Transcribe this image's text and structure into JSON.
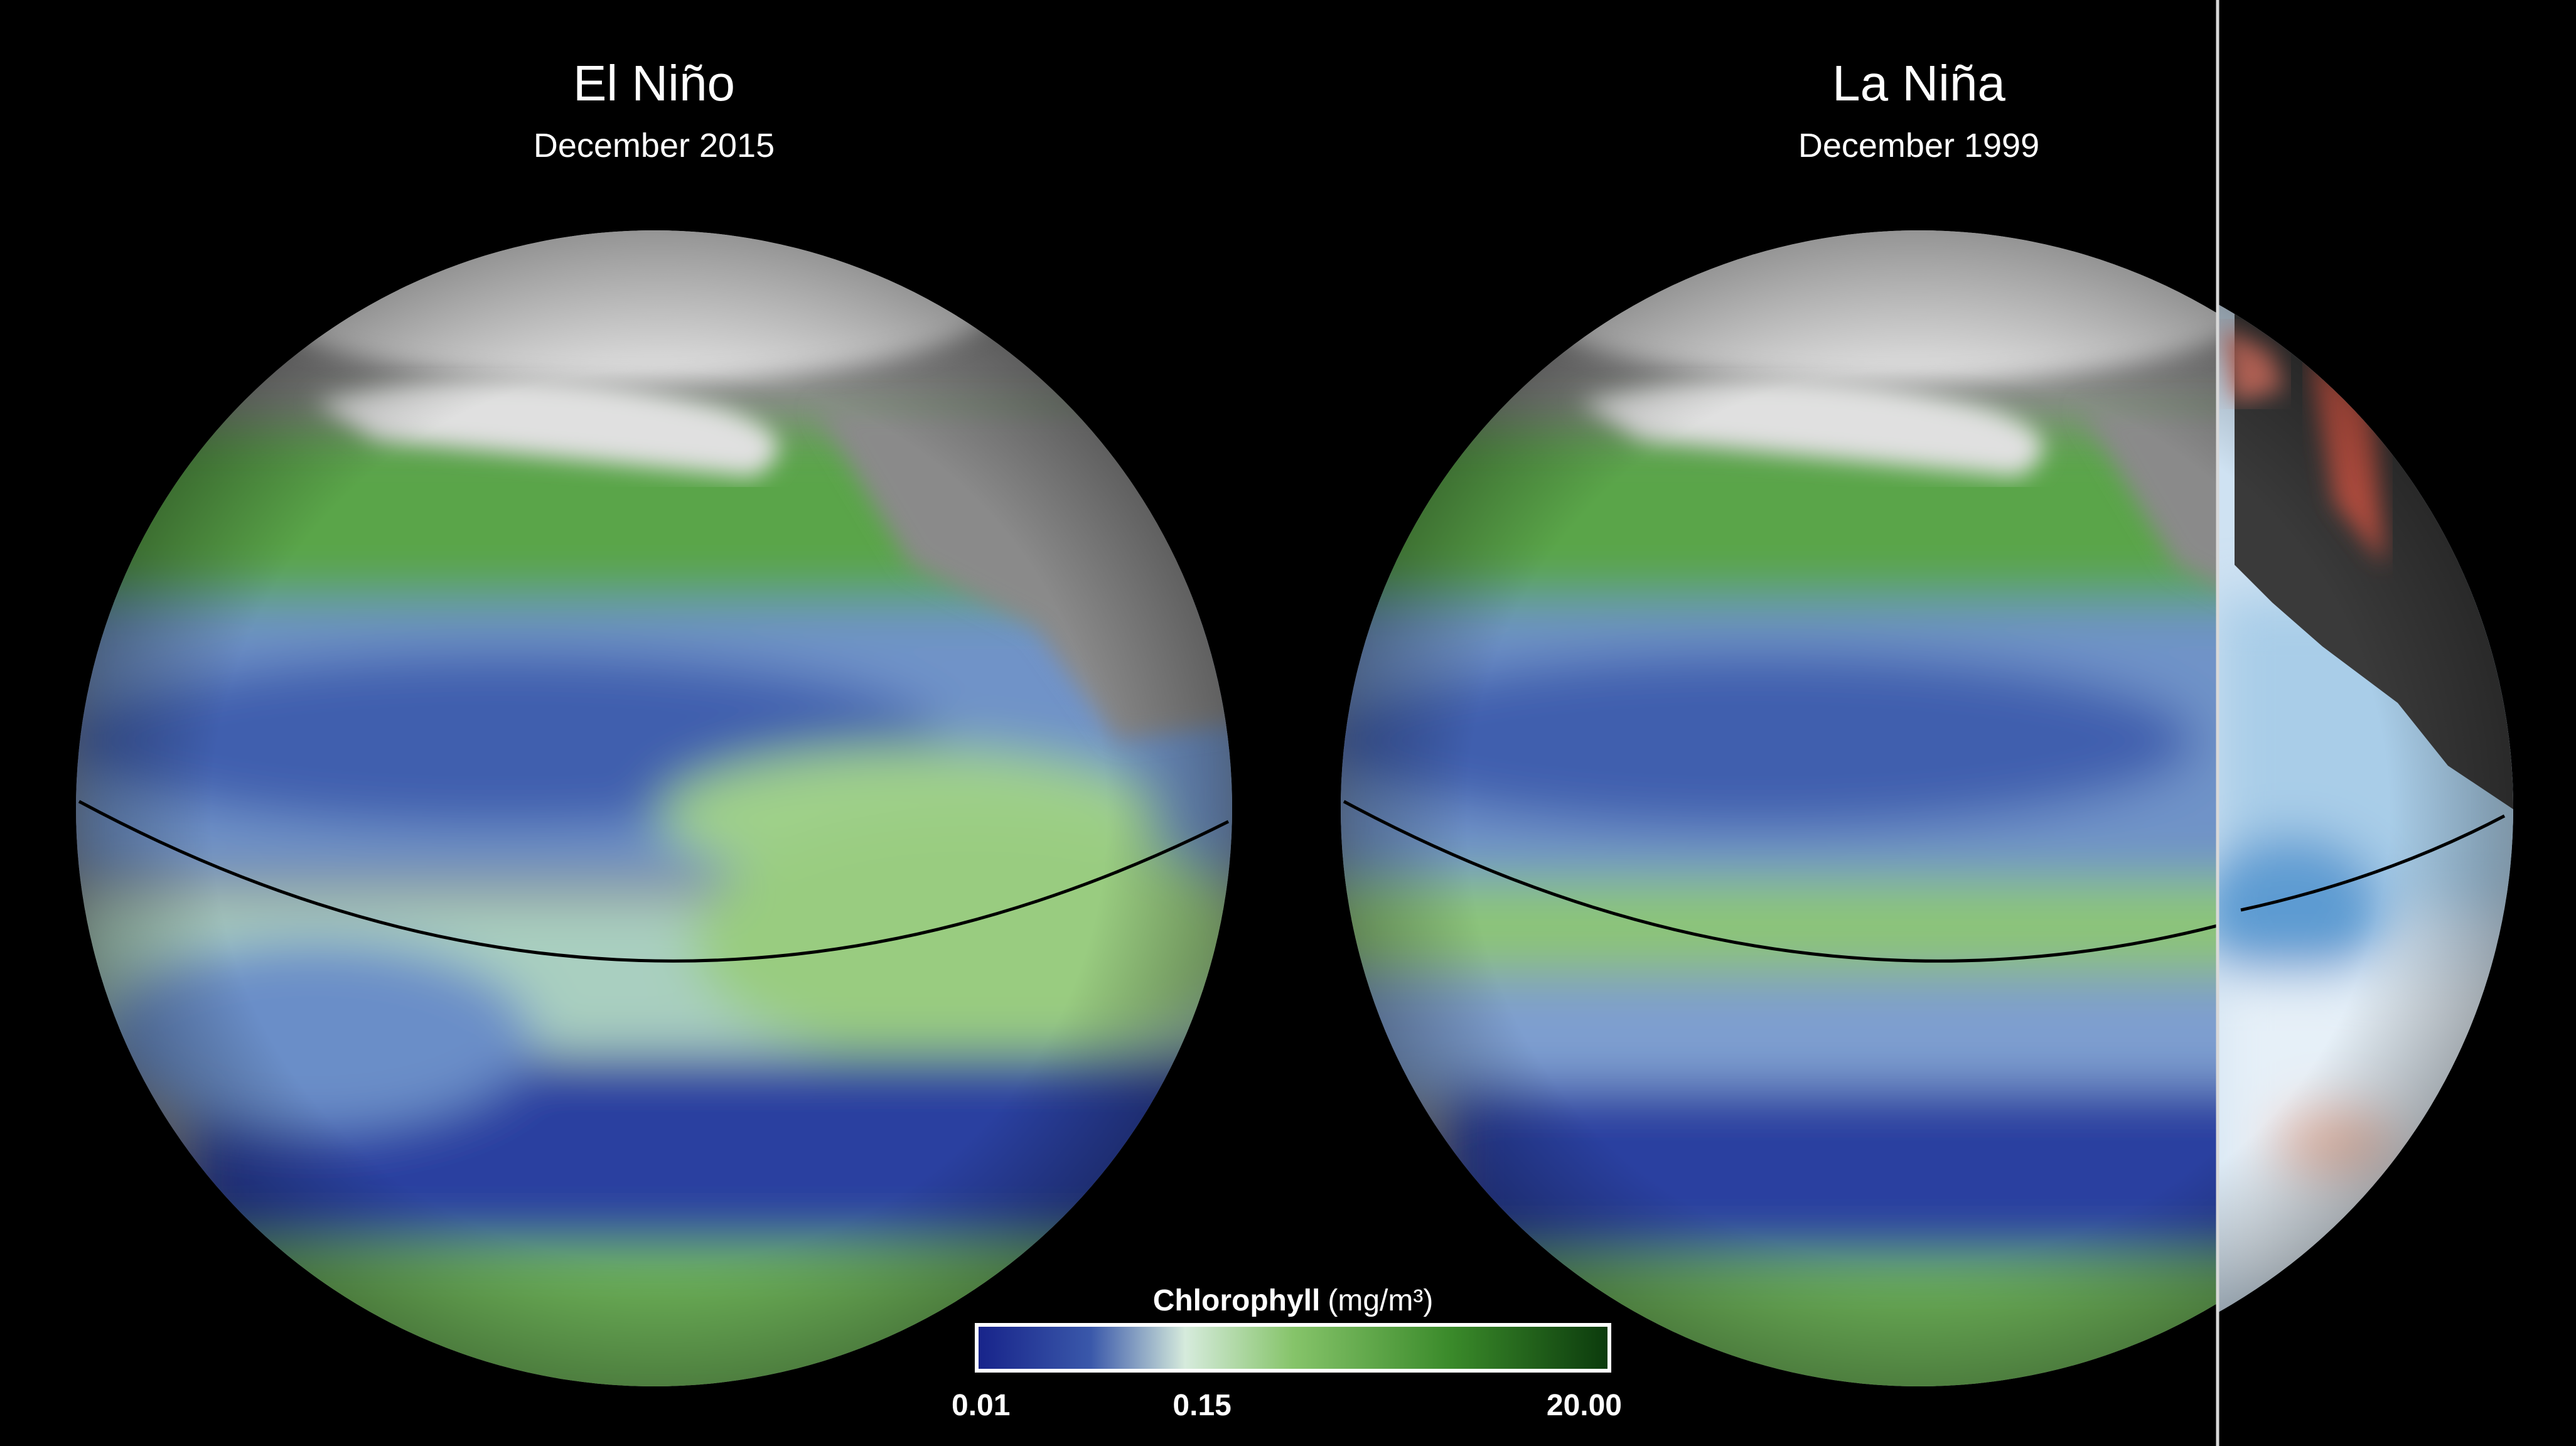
{
  "panels": [
    {
      "title": "El Niño",
      "subtitle": "December 2015"
    },
    {
      "title": "La Niña",
      "subtitle": "December 1999"
    }
  ],
  "colorbar": {
    "label": "Chlorophyll",
    "unit": "(mg/m³)",
    "scale": "log",
    "range": [
      0.01,
      20
    ],
    "ticks": [
      {
        "value": 0.01,
        "label": "0.01"
      },
      {
        "value": 0.15,
        "label": "0.15"
      },
      {
        "value": 20,
        "label": "20.00"
      }
    ]
  }
}
